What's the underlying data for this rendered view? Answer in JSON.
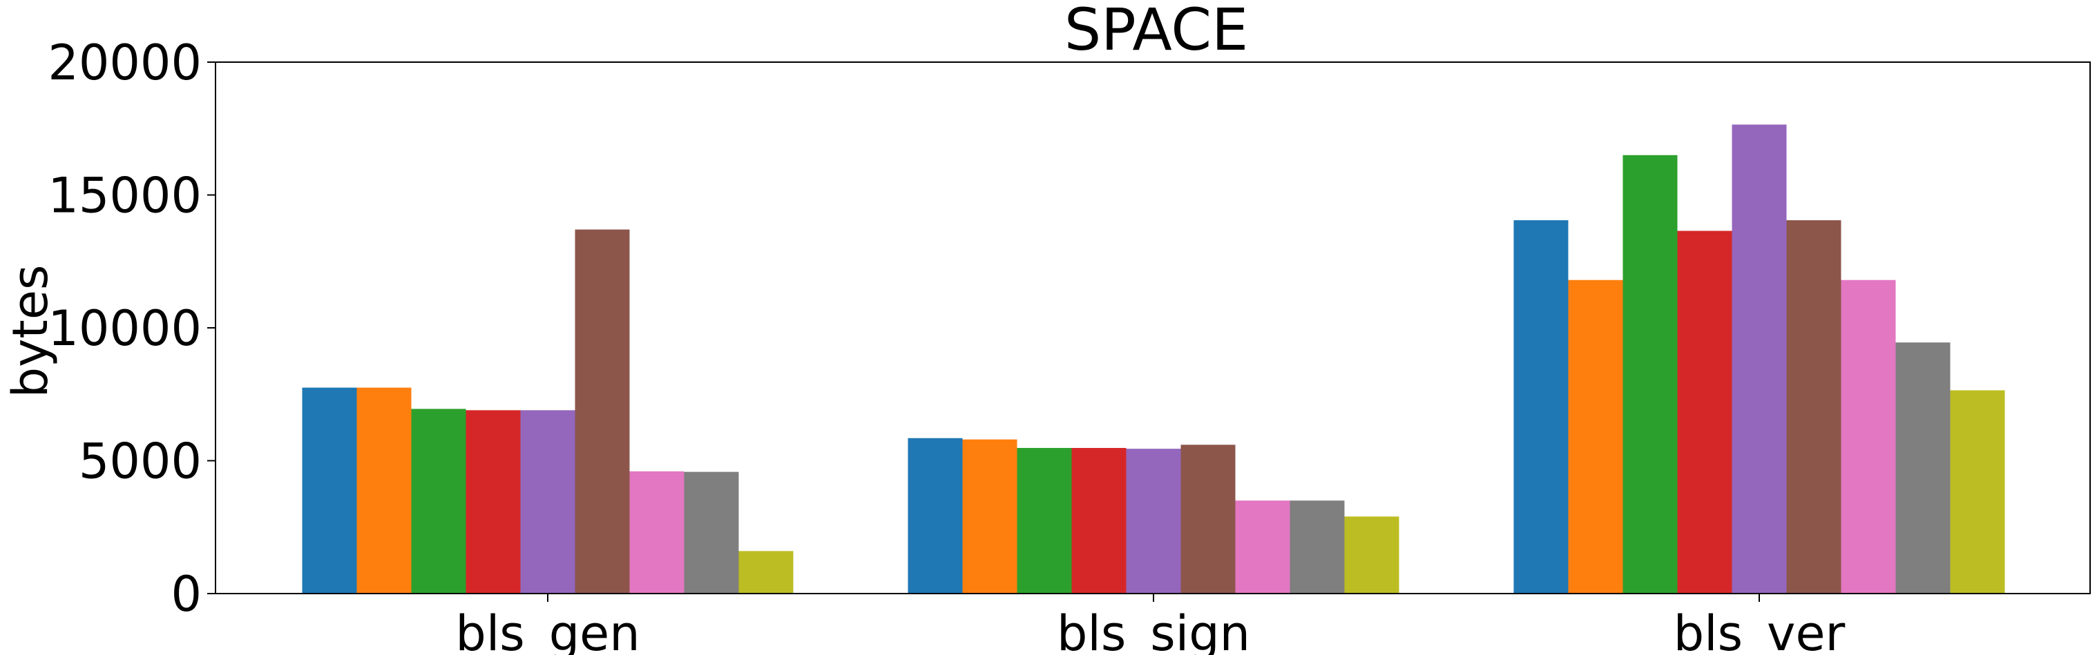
{
  "chart_data": {
    "type": "bar",
    "title": "SPACE",
    "xlabel": "",
    "ylabel": "bytes",
    "ylim": [
      0,
      20000
    ],
    "yticks": [
      0,
      5000,
      10000,
      15000,
      20000
    ],
    "yticks_labels": [
      "0",
      "5000",
      "10000",
      "15000",
      "20000"
    ],
    "grid": false,
    "legend": "none",
    "categories": [
      "bls_gen",
      "bls_sign",
      "bls_ver"
    ],
    "series": [
      {
        "color": "#1f77b4",
        "values": [
          7750,
          5850,
          14050
        ]
      },
      {
        "color": "#ff7f0e",
        "values": [
          7750,
          5800,
          11800
        ]
      },
      {
        "color": "#2ca02c",
        "values": [
          6950,
          5480,
          16500
        ]
      },
      {
        "color": "#d62728",
        "values": [
          6900,
          5480,
          13650
        ]
      },
      {
        "color": "#9467bd",
        "values": [
          6900,
          5450,
          17650
        ]
      },
      {
        "color": "#8c564b",
        "values": [
          13700,
          5600,
          14050
        ]
      },
      {
        "color": "#e377c2",
        "values": [
          4600,
          3500,
          11800
        ]
      },
      {
        "color": "#7f7f7f",
        "values": [
          4580,
          3500,
          9450
        ]
      },
      {
        "color": "#bcbd22",
        "values": [
          1600,
          2900,
          7650
        ]
      }
    ]
  }
}
